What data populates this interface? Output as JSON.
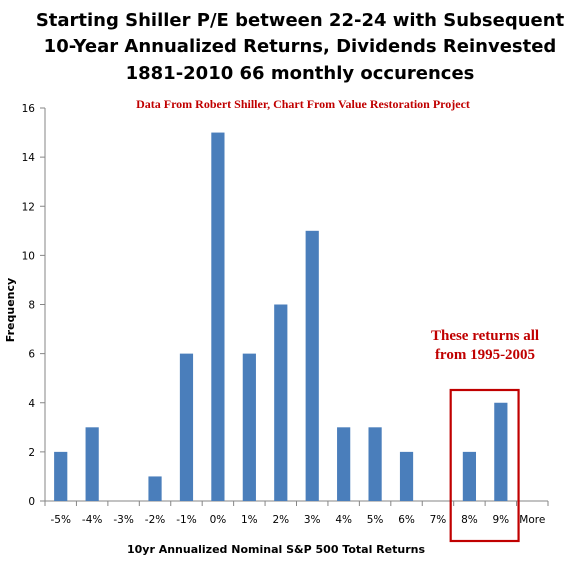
{
  "chart_data": {
    "type": "bar",
    "title_lines": [
      "Starting Shiller P/E between 22-24 with Subsequent",
      "10-Year Annualized Returns, Dividends Reinvested",
      "1881-2010  66 monthly occurences"
    ],
    "subtitle": "Data From Robert Shiller, Chart From Value Restoration Project",
    "xlabel": "10yr  Annualized Nominal S&P 500  Total Returns",
    "ylabel": "Frequency",
    "categories": [
      "-5%",
      "-4%",
      "-3%",
      "-2%",
      "-1%",
      "0%",
      "1%",
      "2%",
      "3%",
      "4%",
      "5%",
      "6%",
      "7%",
      "8%",
      "9%",
      "More"
    ],
    "values": [
      2,
      3,
      0,
      1,
      6,
      15,
      6,
      8,
      11,
      3,
      3,
      2,
      0,
      2,
      4,
      0
    ],
    "ylim": [
      0,
      16
    ],
    "yticks": [
      0,
      2,
      4,
      6,
      8,
      10,
      12,
      14,
      16
    ],
    "grid": false,
    "legend": false,
    "annotation": {
      "lines": [
        "These returns all",
        "from 1995-2005"
      ],
      "highlighted_categories": [
        "8%",
        "9%"
      ]
    },
    "colors": {
      "bar": "#4a7ebb",
      "axis": "#868686",
      "subtitle": "#c00000",
      "annotation": "#c00000",
      "highlight_box": "#c00000"
    }
  }
}
